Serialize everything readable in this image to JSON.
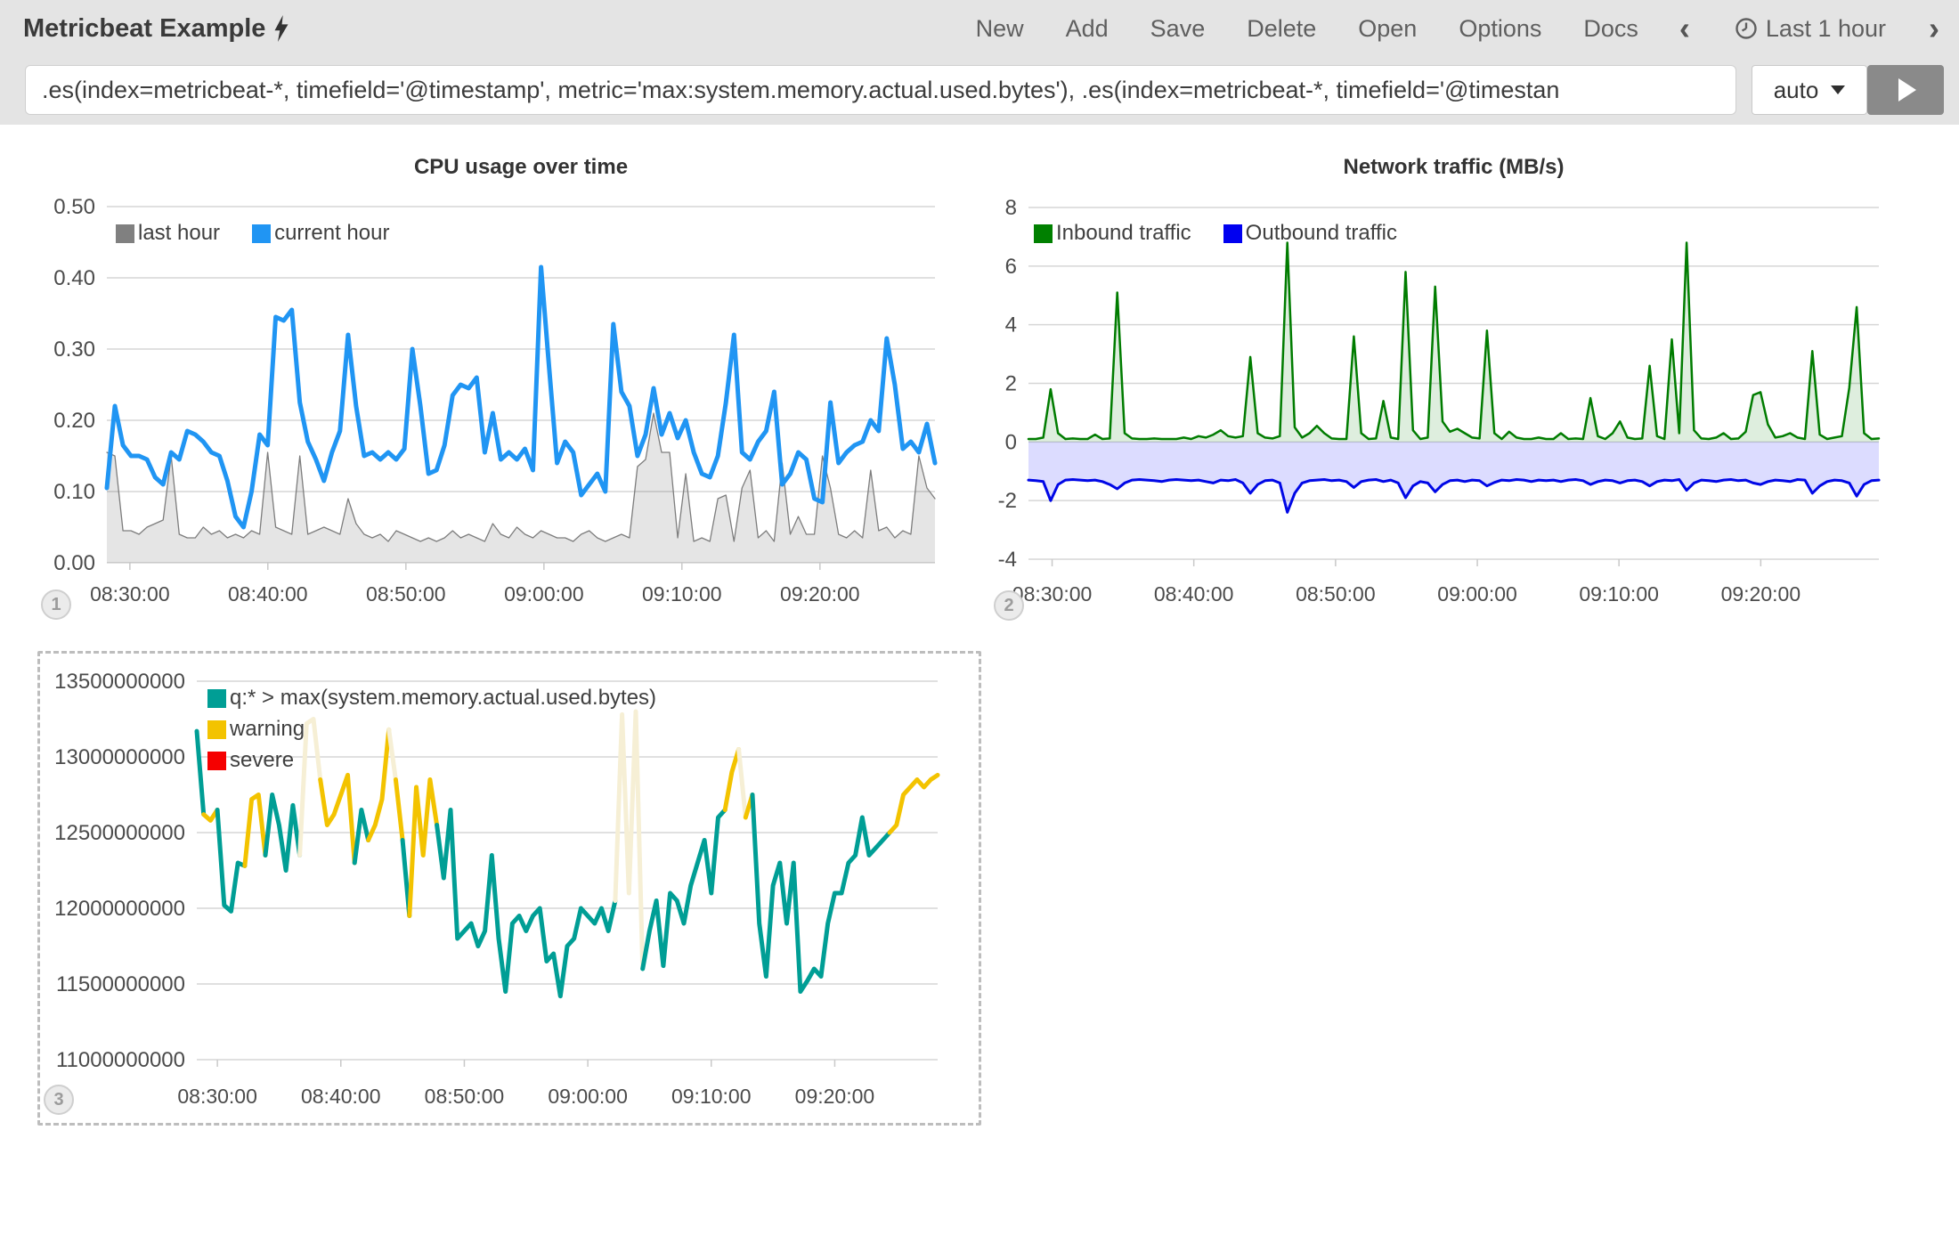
{
  "topbar": {
    "title": "Metricbeat Example",
    "title_icon": "lightning-bolt",
    "menu": [
      "New",
      "Add",
      "Save",
      "Delete",
      "Open",
      "Options",
      "Docs"
    ],
    "prev_arrow": "‹",
    "next_arrow": "›",
    "time_range": "Last 1 hour"
  },
  "querybar": {
    "query": ".es(index=metricbeat-*, timefield='@timestamp', metric='max:system.memory.actual.used.bytes'), .es(index=metricbeat-*, timefield='@timestan",
    "interval": "auto"
  },
  "colors": {
    "header_bg": "#e4e4e4",
    "grid": "#d6d6d6",
    "axis_text": "#4b4b4b",
    "cpu_current": "#2095f3",
    "cpu_last": "#808080",
    "net_inbound": "#008000",
    "net_outbound": "#0000f0",
    "memory_line": "#009e95",
    "warning": "#f3c300",
    "severe": "#f50000",
    "warning_pale_peak": "#f6efd5"
  },
  "chart_data": [
    {
      "id": "cpu",
      "type": "line",
      "title": "CPU usage over time",
      "badge": "1",
      "ylim": [
        0,
        0.5
      ],
      "grid": true,
      "legend_position": "top-left",
      "yticks": [
        {
          "v": 0.5,
          "label": "0.50"
        },
        {
          "v": 0.4,
          "label": "0.40"
        },
        {
          "v": 0.3,
          "label": "0.30"
        },
        {
          "v": 0.2,
          "label": "0.20"
        },
        {
          "v": 0.1,
          "label": "0.10"
        },
        {
          "v": 0.0,
          "label": "0.00"
        }
      ],
      "xticks": [
        {
          "f": 0.0278,
          "label": "08:30:00"
        },
        {
          "f": 0.1944,
          "label": "08:40:00"
        },
        {
          "f": 0.3611,
          "label": "08:50:00"
        },
        {
          "f": 0.5278,
          "label": "09:00:00"
        },
        {
          "f": 0.6944,
          "label": "09:10:00"
        },
        {
          "f": 0.8611,
          "label": "09:20:00"
        }
      ],
      "legend": [
        {
          "label": "last hour",
          "color": "#808080"
        },
        {
          "label": "current hour",
          "color": "#2095f3"
        }
      ],
      "series": [
        {
          "name": "last hour",
          "type": "area",
          "color": "#7d7d7d",
          "fill": "rgba(0,0,0,0.10)",
          "lw": 1.3,
          "values": [
            0.155,
            0.15,
            0.045,
            0.045,
            0.04,
            0.05,
            0.055,
            0.06,
            0.15,
            0.04,
            0.035,
            0.035,
            0.05,
            0.04,
            0.045,
            0.035,
            0.04,
            0.035,
            0.045,
            0.04,
            0.155,
            0.05,
            0.045,
            0.04,
            0.15,
            0.04,
            0.045,
            0.05,
            0.045,
            0.04,
            0.09,
            0.055,
            0.04,
            0.035,
            0.04,
            0.03,
            0.045,
            0.04,
            0.035,
            0.03,
            0.035,
            0.03,
            0.035,
            0.045,
            0.035,
            0.04,
            0.035,
            0.03,
            0.055,
            0.04,
            0.035,
            0.05,
            0.04,
            0.035,
            0.045,
            0.04,
            0.035,
            0.035,
            0.03,
            0.04,
            0.045,
            0.035,
            0.03,
            0.035,
            0.04,
            0.035,
            0.135,
            0.145,
            0.21,
            0.155,
            0.155,
            0.035,
            0.125,
            0.03,
            0.035,
            0.03,
            0.09,
            0.095,
            0.03,
            0.105,
            0.13,
            0.035,
            0.045,
            0.03,
            0.14,
            0.04,
            0.065,
            0.04,
            0.04,
            0.15,
            0.105,
            0.04,
            0.035,
            0.045,
            0.035,
            0.13,
            0.045,
            0.05,
            0.035,
            0.045,
            0.04,
            0.15,
            0.105,
            0.09
          ]
        },
        {
          "name": "current hour",
          "type": "line",
          "color": "#2095f3",
          "lw": 5,
          "values": [
            0.105,
            0.22,
            0.165,
            0.15,
            0.15,
            0.145,
            0.12,
            0.11,
            0.155,
            0.145,
            0.185,
            0.18,
            0.17,
            0.155,
            0.15,
            0.115,
            0.065,
            0.05,
            0.1,
            0.18,
            0.165,
            0.345,
            0.34,
            0.355,
            0.225,
            0.17,
            0.145,
            0.115,
            0.155,
            0.185,
            0.32,
            0.22,
            0.15,
            0.155,
            0.145,
            0.155,
            0.145,
            0.16,
            0.3,
            0.22,
            0.125,
            0.13,
            0.165,
            0.235,
            0.25,
            0.245,
            0.26,
            0.155,
            0.21,
            0.145,
            0.155,
            0.145,
            0.16,
            0.13,
            0.415,
            0.275,
            0.14,
            0.17,
            0.155,
            0.095,
            0.11,
            0.125,
            0.1,
            0.335,
            0.24,
            0.22,
            0.15,
            0.18,
            0.245,
            0.18,
            0.21,
            0.175,
            0.2,
            0.155,
            0.125,
            0.12,
            0.15,
            0.225,
            0.32,
            0.155,
            0.145,
            0.17,
            0.185,
            0.24,
            0.11,
            0.125,
            0.155,
            0.145,
            0.09,
            0.085,
            0.225,
            0.14,
            0.155,
            0.165,
            0.17,
            0.2,
            0.185,
            0.315,
            0.25,
            0.16,
            0.17,
            0.155,
            0.195,
            0.14
          ]
        }
      ]
    },
    {
      "id": "net",
      "type": "area",
      "title": "Network traffic (MB/s)",
      "badge": "2",
      "ylim": [
        -4,
        8
      ],
      "grid": true,
      "legend_position": "top-left",
      "yticks": [
        {
          "v": 8,
          "label": "8"
        },
        {
          "v": 6,
          "label": "6"
        },
        {
          "v": 4,
          "label": "4"
        },
        {
          "v": 2,
          "label": "2"
        },
        {
          "v": 0,
          "label": "0"
        },
        {
          "v": -2,
          "label": "-2"
        },
        {
          "v": -4,
          "label": "-4"
        }
      ],
      "xticks": [
        {
          "f": 0.0278,
          "label": "08:30:00"
        },
        {
          "f": 0.1944,
          "label": "08:40:00"
        },
        {
          "f": 0.3611,
          "label": "08:50:00"
        },
        {
          "f": 0.5278,
          "label": "09:00:00"
        },
        {
          "f": 0.6944,
          "label": "09:10:00"
        },
        {
          "f": 0.8611,
          "label": "09:20:00"
        }
      ],
      "legend": [
        {
          "label": "Inbound traffic",
          "color": "#008000"
        },
        {
          "label": "Outbound traffic",
          "color": "#0000f0"
        }
      ],
      "series": [
        {
          "name": "Inbound traffic",
          "type": "area",
          "color": "#007c00",
          "fill": "rgba(0,126,0,0.13)",
          "lw": 2.5,
          "values": [
            0.1,
            0.1,
            0.15,
            1.8,
            0.3,
            0.1,
            0.12,
            0.1,
            0.1,
            0.25,
            0.1,
            0.12,
            5.1,
            0.3,
            0.12,
            0.1,
            0.1,
            0.12,
            0.1,
            0.1,
            0.1,
            0.15,
            0.1,
            0.2,
            0.15,
            0.25,
            0.4,
            0.2,
            0.15,
            0.2,
            2.9,
            0.3,
            0.15,
            0.12,
            0.2,
            6.8,
            0.5,
            0.15,
            0.3,
            0.55,
            0.3,
            0.12,
            0.1,
            0.1,
            3.6,
            0.3,
            0.1,
            0.12,
            1.4,
            0.15,
            0.1,
            5.8,
            0.4,
            0.1,
            0.15,
            5.3,
            0.7,
            0.35,
            0.45,
            0.3,
            0.15,
            0.12,
            3.8,
            0.3,
            0.1,
            0.35,
            0.15,
            0.1,
            0.1,
            0.15,
            0.1,
            0.1,
            0.3,
            0.1,
            0.12,
            0.1,
            1.5,
            0.2,
            0.1,
            0.3,
            0.7,
            0.15,
            0.1,
            0.12,
            2.6,
            0.2,
            0.1,
            3.5,
            0.3,
            6.8,
            0.4,
            0.12,
            0.1,
            0.15,
            0.3,
            0.1,
            0.12,
            0.35,
            1.6,
            1.7,
            0.6,
            0.15,
            0.2,
            0.3,
            0.15,
            0.1,
            3.1,
            0.25,
            0.1,
            0.15,
            0.2,
            1.85,
            4.6,
            0.3,
            0.1,
            0.12
          ]
        },
        {
          "name": "Outbound traffic",
          "type": "area",
          "color": "#0007e6",
          "fill": "rgba(46,46,255,0.17)",
          "lw": 3,
          "values": [
            -1.3,
            -1.32,
            -1.35,
            -2.0,
            -1.45,
            -1.3,
            -1.28,
            -1.3,
            -1.32,
            -1.3,
            -1.35,
            -1.45,
            -1.6,
            -1.4,
            -1.3,
            -1.28,
            -1.3,
            -1.32,
            -1.35,
            -1.3,
            -1.28,
            -1.3,
            -1.32,
            -1.3,
            -1.35,
            -1.4,
            -1.3,
            -1.32,
            -1.28,
            -1.4,
            -1.75,
            -1.45,
            -1.32,
            -1.3,
            -1.4,
            -2.4,
            -1.75,
            -1.4,
            -1.32,
            -1.3,
            -1.28,
            -1.32,
            -1.3,
            -1.35,
            -1.55,
            -1.35,
            -1.3,
            -1.28,
            -1.35,
            -1.3,
            -1.4,
            -1.9,
            -1.5,
            -1.35,
            -1.4,
            -1.7,
            -1.45,
            -1.32,
            -1.3,
            -1.35,
            -1.3,
            -1.32,
            -1.5,
            -1.38,
            -1.3,
            -1.32,
            -1.28,
            -1.3,
            -1.35,
            -1.3,
            -1.32,
            -1.3,
            -1.35,
            -1.3,
            -1.28,
            -1.32,
            -1.45,
            -1.35,
            -1.3,
            -1.32,
            -1.4,
            -1.32,
            -1.3,
            -1.35,
            -1.5,
            -1.35,
            -1.3,
            -1.32,
            -1.28,
            -1.65,
            -1.4,
            -1.3,
            -1.32,
            -1.35,
            -1.3,
            -1.28,
            -1.32,
            -1.3,
            -1.4,
            -1.45,
            -1.35,
            -1.3,
            -1.32,
            -1.35,
            -1.28,
            -1.3,
            -1.75,
            -1.5,
            -1.35,
            -1.3,
            -1.32,
            -1.4,
            -1.85,
            -1.45,
            -1.32,
            -1.3
          ]
        }
      ]
    },
    {
      "id": "mem",
      "type": "line",
      "title": "",
      "badge": "3",
      "selected": true,
      "value_unit": "bytes (values listed in 1e9 bytes)",
      "ylim": [
        11.0,
        13.5
      ],
      "grid": true,
      "legend_position": "top-left",
      "yticks": [
        {
          "v": 13.5,
          "label": "13500000000"
        },
        {
          "v": 13.0,
          "label": "13000000000"
        },
        {
          "v": 12.5,
          "label": "12500000000"
        },
        {
          "v": 12.0,
          "label": "12000000000"
        },
        {
          "v": 11.5,
          "label": "11500000000"
        },
        {
          "v": 11.0,
          "label": "11000000000"
        }
      ],
      "xticks": [
        {
          "f": 0.0278,
          "label": "08:30:00"
        },
        {
          "f": 0.1944,
          "label": "08:40:00"
        },
        {
          "f": 0.3611,
          "label": "08:50:00"
        },
        {
          "f": 0.5278,
          "label": "09:00:00"
        },
        {
          "f": 0.6944,
          "label": "09:10:00"
        },
        {
          "f": 0.8611,
          "label": "09:20:00"
        }
      ],
      "legend": [
        {
          "label": "q:* > max(system.memory.actual.used.bytes)",
          "color": "#009e95"
        },
        {
          "label": "warning",
          "color": "#f3c300"
        },
        {
          "label": "severe",
          "color": "#f50000"
        }
      ],
      "series": [
        {
          "name": "q:* > max(system.memory.actual.used.bytes)",
          "type": "multiline",
          "lw": 5,
          "palette": {
            "t": "#009e95",
            "w": "#f3c300",
            "p": "#f6efd5"
          },
          "values": [
            13.17,
            12.62,
            12.58,
            12.65,
            12.02,
            11.98,
            12.3,
            12.28,
            12.72,
            12.75,
            12.35,
            12.75,
            12.55,
            12.25,
            12.68,
            12.35,
            13.22,
            13.25,
            12.85,
            12.55,
            12.62,
            12.75,
            12.88,
            12.3,
            12.65,
            12.45,
            12.55,
            12.72,
            13.18,
            12.85,
            12.45,
            11.95,
            12.8,
            12.35,
            12.85,
            12.55,
            12.2,
            12.65,
            11.8,
            11.85,
            11.9,
            11.75,
            11.85,
            12.35,
            11.8,
            11.45,
            11.9,
            11.95,
            11.85,
            11.95,
            12.0,
            11.65,
            11.7,
            11.42,
            11.75,
            11.8,
            12.0,
            11.95,
            11.9,
            12.0,
            11.85,
            12.05,
            13.28,
            12.1,
            13.3,
            11.6,
            11.85,
            12.05,
            11.62,
            12.1,
            12.05,
            11.9,
            12.15,
            12.3,
            12.45,
            12.1,
            12.6,
            12.65,
            12.9,
            13.05,
            12.6,
            12.75,
            11.9,
            11.55,
            12.15,
            12.3,
            11.9,
            12.3,
            11.45,
            11.52,
            11.6,
            11.55,
            11.9,
            12.1,
            12.1,
            12.3,
            12.35,
            12.6,
            12.35,
            12.4,
            12.45,
            12.5,
            12.55,
            12.75,
            12.8,
            12.85,
            12.8,
            12.85,
            12.88
          ],
          "colors": [
            "t",
            "t",
            "w",
            "t",
            "t",
            "t",
            "t",
            "t",
            "w",
            "w",
            "t",
            "t",
            "t",
            "t",
            "t",
            "t",
            "p",
            "p",
            "w",
            "w",
            "w",
            "w",
            "w",
            "t",
            "t",
            "t",
            "w",
            "w",
            "p",
            "w",
            "t",
            "t",
            "w",
            "t",
            "w",
            "t",
            "t",
            "t",
            "t",
            "t",
            "t",
            "t",
            "t",
            "t",
            "t",
            "t",
            "t",
            "t",
            "t",
            "t",
            "t",
            "t",
            "t",
            "t",
            "t",
            "t",
            "t",
            "t",
            "t",
            "t",
            "t",
            "t",
            "p",
            "t",
            "p",
            "t",
            "t",
            "t",
            "t",
            "t",
            "t",
            "t",
            "t",
            "t",
            "t",
            "t",
            "t",
            "t",
            "w",
            "p",
            "w",
            "t",
            "t",
            "t",
            "t",
            "t",
            "t",
            "t",
            "t",
            "t",
            "t",
            "t",
            "t",
            "t",
            "t",
            "t",
            "t",
            "t",
            "t",
            "t",
            "t",
            "t",
            "w",
            "w",
            "w",
            "w",
            "w",
            "w",
            "w"
          ]
        }
      ]
    }
  ]
}
